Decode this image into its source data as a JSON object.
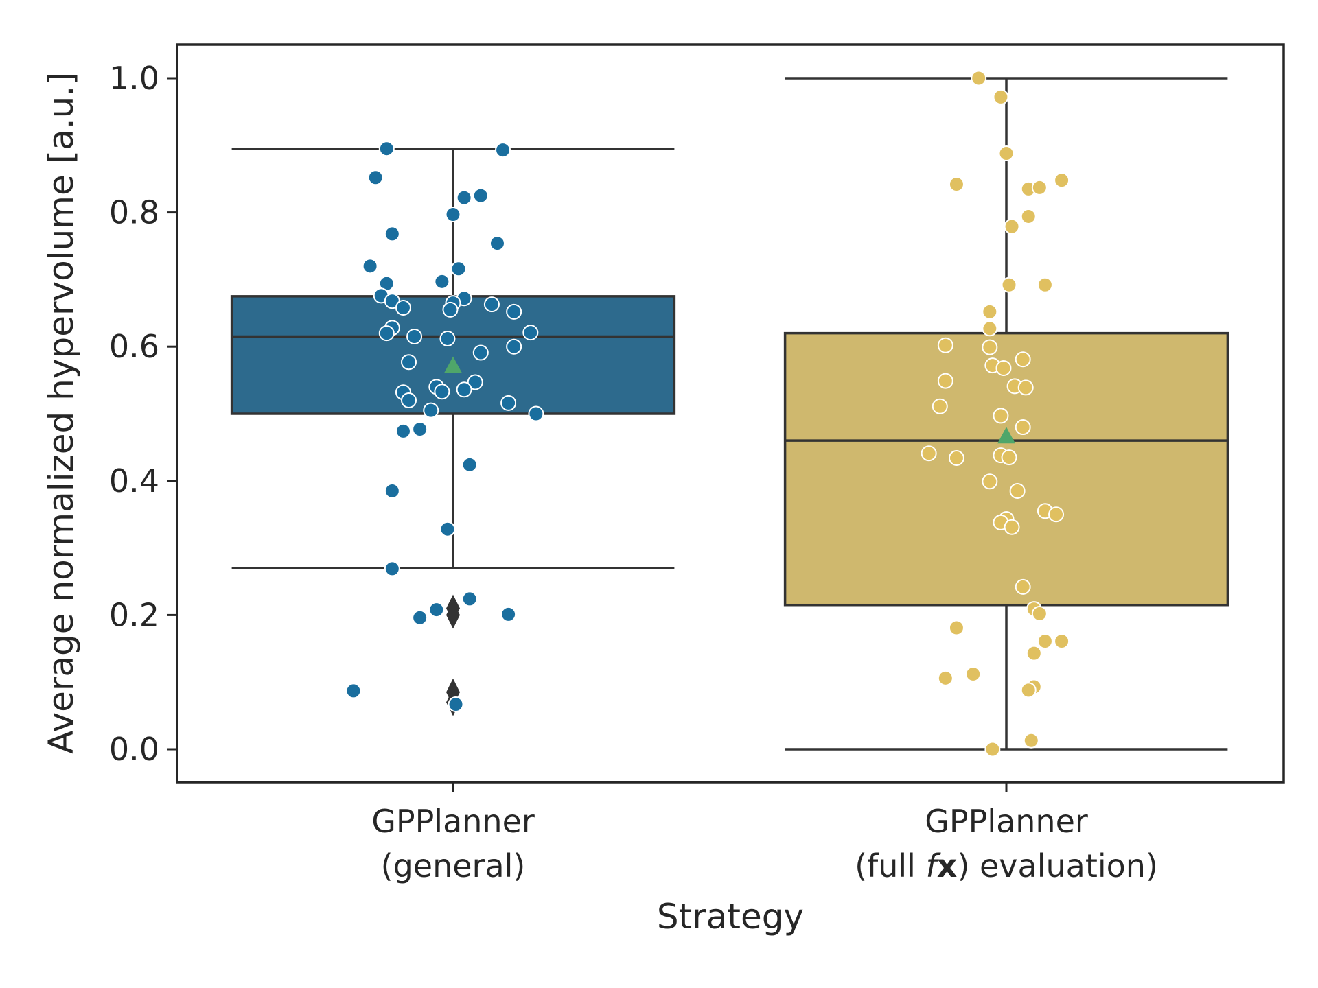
{
  "chart_data": {
    "type": "box",
    "xlabel": "Strategy",
    "ylabel": "Average normalized hypervolume [a.u.]",
    "ylim": [
      -0.05,
      1.05
    ],
    "yticks": [
      "0.0",
      "0.2",
      "0.4",
      "0.6",
      "0.8",
      "1.0"
    ],
    "grid": false,
    "categories": [
      {
        "line1": "GPPlanner",
        "line2_pre": "(general)",
        "line2_italic": "",
        "line2_bold": "",
        "line2_post": ""
      },
      {
        "line1": "GPPlanner",
        "line2_pre": "(full ",
        "line2_italic": "f",
        "line2_bold": "x",
        "line2_post": ") evaluation)"
      }
    ],
    "series": [
      {
        "color": "#2d6a8d",
        "point_color": "#1a6e9e",
        "q1": 0.5,
        "median": 0.615,
        "q3": 0.675,
        "whisker_low": 0.27,
        "whisker_high": 0.895,
        "mean": 0.57,
        "outliers": [
          0.21,
          0.2,
          0.085,
          0.07
        ],
        "points": [
          {
            "dx": -0.12,
            "y": 0.895
          },
          {
            "dx": 0.09,
            "y": 0.893
          },
          {
            "dx": -0.14,
            "y": 0.852
          },
          {
            "dx": 0.02,
            "y": 0.822
          },
          {
            "dx": 0.05,
            "y": 0.825
          },
          {
            "dx": 0.0,
            "y": 0.797
          },
          {
            "dx": -0.11,
            "y": 0.768
          },
          {
            "dx": 0.08,
            "y": 0.754
          },
          {
            "dx": -0.15,
            "y": 0.72
          },
          {
            "dx": 0.01,
            "y": 0.716
          },
          {
            "dx": -0.12,
            "y": 0.694
          },
          {
            "dx": -0.02,
            "y": 0.697
          },
          {
            "dx": -0.13,
            "y": 0.676
          },
          {
            "dx": 0.02,
            "y": 0.672
          },
          {
            "dx": -0.11,
            "y": 0.668
          },
          {
            "dx": 0.0,
            "y": 0.665
          },
          {
            "dx": 0.07,
            "y": 0.663
          },
          {
            "dx": -0.09,
            "y": 0.658
          },
          {
            "dx": -0.005,
            "y": 0.655
          },
          {
            "dx": 0.11,
            "y": 0.652
          },
          {
            "dx": -0.11,
            "y": 0.628
          },
          {
            "dx": -0.12,
            "y": 0.62
          },
          {
            "dx": 0.14,
            "y": 0.621
          },
          {
            "dx": -0.07,
            "y": 0.615
          },
          {
            "dx": -0.01,
            "y": 0.612
          },
          {
            "dx": 0.11,
            "y": 0.6
          },
          {
            "dx": 0.05,
            "y": 0.591
          },
          {
            "dx": -0.08,
            "y": 0.577
          },
          {
            "dx": 0.04,
            "y": 0.547
          },
          {
            "dx": -0.03,
            "y": 0.54
          },
          {
            "dx": 0.02,
            "y": 0.536
          },
          {
            "dx": -0.09,
            "y": 0.532
          },
          {
            "dx": -0.02,
            "y": 0.533
          },
          {
            "dx": -0.08,
            "y": 0.52
          },
          {
            "dx": 0.1,
            "y": 0.516
          },
          {
            "dx": -0.04,
            "y": 0.505
          },
          {
            "dx": 0.15,
            "y": 0.5
          },
          {
            "dx": -0.09,
            "y": 0.474
          },
          {
            "dx": -0.06,
            "y": 0.477
          },
          {
            "dx": 0.03,
            "y": 0.424
          },
          {
            "dx": -0.11,
            "y": 0.385
          },
          {
            "dx": -0.01,
            "y": 0.328
          },
          {
            "dx": -0.11,
            "y": 0.269
          },
          {
            "dx": 0.03,
            "y": 0.224
          },
          {
            "dx": -0.03,
            "y": 0.208
          },
          {
            "dx": -0.06,
            "y": 0.196
          },
          {
            "dx": 0.1,
            "y": 0.201
          },
          {
            "dx": -0.18,
            "y": 0.087
          },
          {
            "dx": 0.005,
            "y": 0.067
          }
        ]
      },
      {
        "color": "#cfb86e",
        "point_color": "#e0c060",
        "q1": 0.215,
        "median": 0.46,
        "q3": 0.62,
        "whisker_low": 0.0,
        "whisker_high": 1.0,
        "mean": 0.465,
        "outliers": [],
        "points": [
          {
            "dx": -0.05,
            "y": 1.0
          },
          {
            "dx": -0.01,
            "y": 0.972
          },
          {
            "dx": 0.0,
            "y": 0.888
          },
          {
            "dx": -0.09,
            "y": 0.842
          },
          {
            "dx": 0.04,
            "y": 0.835
          },
          {
            "dx": 0.06,
            "y": 0.837
          },
          {
            "dx": 0.1,
            "y": 0.848
          },
          {
            "dx": 0.04,
            "y": 0.794
          },
          {
            "dx": 0.01,
            "y": 0.779
          },
          {
            "dx": 0.005,
            "y": 0.692
          },
          {
            "dx": 0.07,
            "y": 0.692
          },
          {
            "dx": -0.03,
            "y": 0.652
          },
          {
            "dx": -0.03,
            "y": 0.627
          },
          {
            "dx": -0.11,
            "y": 0.602
          },
          {
            "dx": -0.03,
            "y": 0.599
          },
          {
            "dx": 0.03,
            "y": 0.581
          },
          {
            "dx": -0.025,
            "y": 0.572
          },
          {
            "dx": -0.005,
            "y": 0.568
          },
          {
            "dx": -0.11,
            "y": 0.549
          },
          {
            "dx": 0.015,
            "y": 0.541
          },
          {
            "dx": 0.035,
            "y": 0.539
          },
          {
            "dx": -0.12,
            "y": 0.511
          },
          {
            "dx": -0.01,
            "y": 0.497
          },
          {
            "dx": 0.03,
            "y": 0.48
          },
          {
            "dx": -0.14,
            "y": 0.441
          },
          {
            "dx": -0.09,
            "y": 0.434
          },
          {
            "dx": -0.01,
            "y": 0.438
          },
          {
            "dx": 0.005,
            "y": 0.435
          },
          {
            "dx": -0.03,
            "y": 0.399
          },
          {
            "dx": 0.02,
            "y": 0.385
          },
          {
            "dx": 0.07,
            "y": 0.355
          },
          {
            "dx": 0.09,
            "y": 0.35
          },
          {
            "dx": 0.0,
            "y": 0.343
          },
          {
            "dx": -0.01,
            "y": 0.338
          },
          {
            "dx": 0.01,
            "y": 0.331
          },
          {
            "dx": 0.03,
            "y": 0.242
          },
          {
            "dx": 0.05,
            "y": 0.209
          },
          {
            "dx": 0.06,
            "y": 0.202
          },
          {
            "dx": -0.09,
            "y": 0.181
          },
          {
            "dx": 0.07,
            "y": 0.161
          },
          {
            "dx": 0.1,
            "y": 0.161
          },
          {
            "dx": 0.05,
            "y": 0.143
          },
          {
            "dx": -0.06,
            "y": 0.112
          },
          {
            "dx": -0.11,
            "y": 0.106
          },
          {
            "dx": 0.05,
            "y": 0.093
          },
          {
            "dx": 0.04,
            "y": 0.088
          },
          {
            "dx": 0.045,
            "y": 0.013
          },
          {
            "dx": -0.025,
            "y": 0.0
          }
        ]
      }
    ]
  }
}
